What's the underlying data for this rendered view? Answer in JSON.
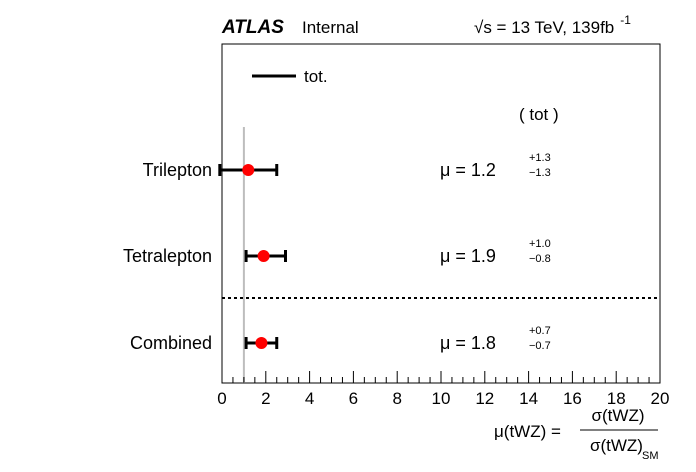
{
  "header": {
    "experiment": "ATLAS",
    "status": "Internal",
    "energy_prefix": "√s = 13 TeV, 139fb",
    "energy_sup": "-1"
  },
  "legend": {
    "label": "tot.",
    "position": "top-left"
  },
  "column_header": "( tot )",
  "xlabel": {
    "lhs": "μ(tWZ) =",
    "numerator": "σ(tWZ)",
    "denominator": "σ(tWZ)",
    "denominator_sub": "SM"
  },
  "chart_data": {
    "type": "scatter",
    "orientation": "horizontal",
    "categories": [
      "Trilepton",
      "Tetralepton",
      "Combined"
    ],
    "points": [
      {
        "label": "Trilepton",
        "mu": 1.2,
        "err_up": 1.3,
        "err_down": 1.3,
        "mu_text": "μ = 1.2",
        "up_text": "+1.3",
        "down_text": "−1.3"
      },
      {
        "label": "Tetralepton",
        "mu": 1.9,
        "err_up": 1.0,
        "err_down": 0.8,
        "mu_text": "μ = 1.9",
        "up_text": "+1.0",
        "down_text": "−0.8"
      },
      {
        "label": "Combined",
        "mu": 1.8,
        "err_up": 0.7,
        "err_down": 0.7,
        "mu_text": "μ = 1.8",
        "up_text": "+0.7",
        "down_text": "−0.7"
      }
    ],
    "xlim": [
      0,
      20
    ],
    "x_ticks": [
      0,
      2,
      4,
      6,
      8,
      10,
      12,
      14,
      16,
      18,
      20
    ],
    "reference_line": 1,
    "separator_after": "Tetralepton",
    "colors": {
      "marker": "#ff0000",
      "reference_line": "#bdbdbd",
      "axis": "#000000"
    }
  }
}
